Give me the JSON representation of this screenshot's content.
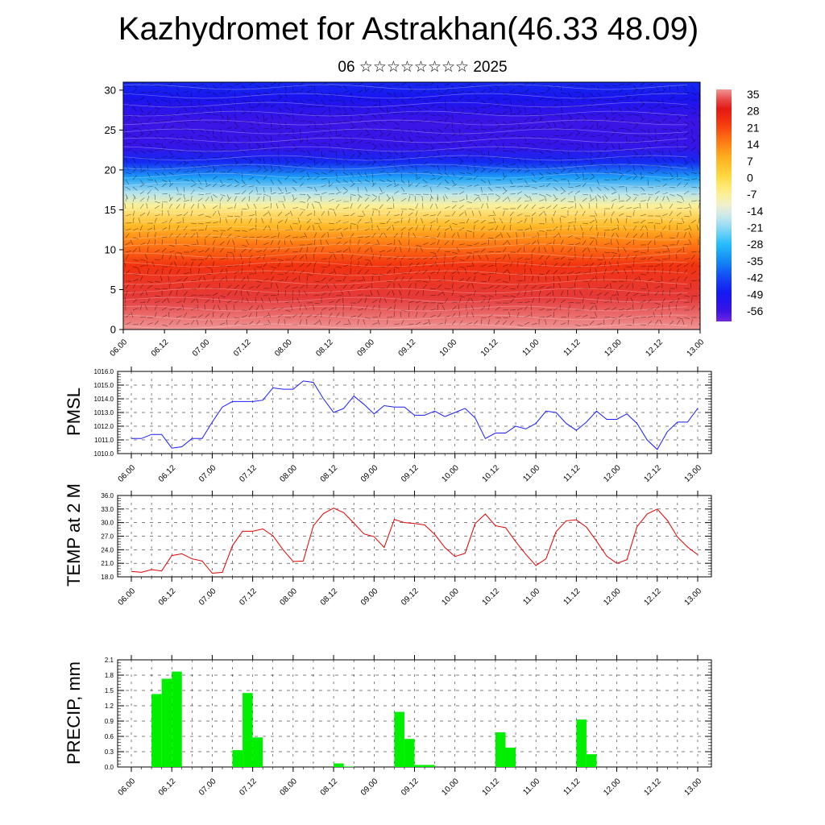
{
  "header": {
    "title": "Kazhydromet for Astrakhan(46.33 48.09)",
    "subtitle": "06 ☆☆☆☆☆☆☆☆ 2025"
  },
  "colors": {
    "pmsl_line": "#1a1aff",
    "temp_line": "#e00000",
    "precip_bar": "#00ee00"
  },
  "chart_data": [
    {
      "type": "heatmap",
      "name": "cross-section",
      "x_tick_labels": [
        "06.00",
        "06.12",
        "07.00",
        "07.12",
        "08.00",
        "08.12",
        "09.00",
        "09.12",
        "10.00",
        "10.12",
        "11.00",
        "11.12",
        "12.00",
        "12.12",
        "13.00"
      ],
      "y_tick_labels": [
        "0",
        "5",
        "10",
        "15",
        "20",
        "25",
        "30"
      ],
      "ylim": [
        0,
        31
      ],
      "colorbar_labels": [
        "35",
        "28",
        "21",
        "14",
        "7",
        "0",
        "-7",
        "-14",
        "-21",
        "-28",
        "-35",
        "-42",
        "-49",
        "-56"
      ],
      "profile": [
        {
          "level": 0,
          "value": 35
        },
        {
          "level": 4,
          "value": 30
        },
        {
          "level": 8,
          "value": 22
        },
        {
          "level": 11,
          "value": 13
        },
        {
          "level": 13,
          "value": 5
        },
        {
          "level": 15.5,
          "value": -8
        },
        {
          "level": 17,
          "value": -18
        },
        {
          "level": 19,
          "value": -32
        },
        {
          "level": 21,
          "value": -46
        },
        {
          "level": 23,
          "value": -55
        },
        {
          "level": 26,
          "value": -56
        },
        {
          "level": 29,
          "value": -50
        },
        {
          "level": 31,
          "value": -46
        }
      ]
    },
    {
      "type": "line",
      "name": "pmsl",
      "ylabel": "PMSL",
      "ylim": [
        1010.0,
        1016.0
      ],
      "y_tick_labels": [
        "1010.0",
        "1011.0",
        "1012.0",
        "1013.0",
        "1014.0",
        "1015.0",
        "1016.0"
      ],
      "x_tick_labels": [
        "06.00",
        "06.12",
        "07.00",
        "07.12",
        "08.00",
        "08.12",
        "09.00",
        "09.12",
        "10.00",
        "10.12",
        "11.00",
        "11.12",
        "12.00",
        "12.12",
        "13.00"
      ],
      "x_step_hours": 3,
      "values": [
        1011.1,
        1011.1,
        1011.4,
        1011.4,
        1010.4,
        1010.5,
        1011.1,
        1011.1,
        1012.3,
        1013.4,
        1013.8,
        1013.8,
        1013.8,
        1013.9,
        1014.8,
        1014.7,
        1014.7,
        1015.3,
        1015.2,
        1014.0,
        1013.0,
        1013.3,
        1014.2,
        1013.6,
        1012.9,
        1013.5,
        1013.4,
        1013.4,
        1012.8,
        1012.8,
        1013.1,
        1012.7,
        1013.0,
        1013.3,
        1012.6,
        1011.1,
        1011.5,
        1011.5,
        1012.0,
        1011.8,
        1012.2,
        1013.1,
        1013.0,
        1012.2,
        1011.7,
        1012.3,
        1013.1,
        1012.5,
        1012.5,
        1012.9,
        1012.2,
        1011.0,
        1010.3,
        1011.6,
        1012.3,
        1012.3,
        1013.3
      ]
    },
    {
      "type": "line",
      "name": "temp",
      "ylabel": "TEMP at 2 M",
      "ylim": [
        18.0,
        36.0
      ],
      "y_tick_labels": [
        "18.0",
        "21.0",
        "24.0",
        "27.0",
        "30.0",
        "33.0",
        "36.0"
      ],
      "x_tick_labels": [
        "06.00",
        "06.12",
        "07.00",
        "07.12",
        "08.00",
        "08.12",
        "09.00",
        "09.12",
        "10.00",
        "10.12",
        "11.00",
        "11.12",
        "12.00",
        "12.12",
        "13.00"
      ],
      "x_step_hours": 3,
      "values": [
        19.2,
        19.0,
        19.6,
        19.3,
        22.7,
        23.1,
        22.0,
        21.5,
        18.8,
        19.0,
        24.9,
        28.1,
        28.1,
        28.6,
        27.1,
        24.0,
        21.4,
        21.5,
        29.3,
        32.0,
        33.2,
        32.2,
        29.9,
        27.5,
        26.9,
        24.5,
        30.7,
        30.0,
        29.8,
        29.5,
        27.4,
        24.5,
        22.5,
        23.2,
        29.8,
        31.9,
        29.3,
        28.9,
        25.8,
        23.0,
        20.5,
        22.0,
        28.0,
        30.4,
        30.6,
        29.0,
        25.9,
        22.6,
        21.0,
        21.8,
        29.1,
        31.9,
        33.0,
        30.5,
        26.8,
        24.6,
        22.9
      ]
    },
    {
      "type": "bar",
      "name": "precip",
      "ylabel": "PRECIP, mm",
      "ylim": [
        0.0,
        2.1
      ],
      "y_tick_labels": [
        "0.0",
        "0.3",
        "0.6",
        "0.9",
        "1.2",
        "1.5",
        "1.8",
        "2.1"
      ],
      "x_tick_labels": [
        "06.00",
        "06.12",
        "07.00",
        "07.12",
        "08.00",
        "08.12",
        "09.00",
        "09.12",
        "10.00",
        "10.12",
        "11.00",
        "11.12",
        "12.00",
        "12.12",
        "13.00"
      ],
      "x_step_hours": 3,
      "values": [
        0,
        0,
        0,
        1.43,
        1.73,
        1.87,
        0,
        0,
        0,
        0,
        0,
        0.33,
        1.45,
        0.58,
        0,
        0,
        0,
        0,
        0,
        0,
        0,
        0.07,
        0.01,
        0,
        0,
        0,
        0,
        1.08,
        0.55,
        0.04,
        0.04,
        0,
        0,
        0,
        0,
        0,
        0,
        0.68,
        0.38,
        0,
        0,
        0,
        0,
        0,
        0,
        0.93,
        0.25,
        0,
        0,
        0,
        0,
        0,
        0,
        0,
        0,
        0,
        0
      ]
    }
  ]
}
